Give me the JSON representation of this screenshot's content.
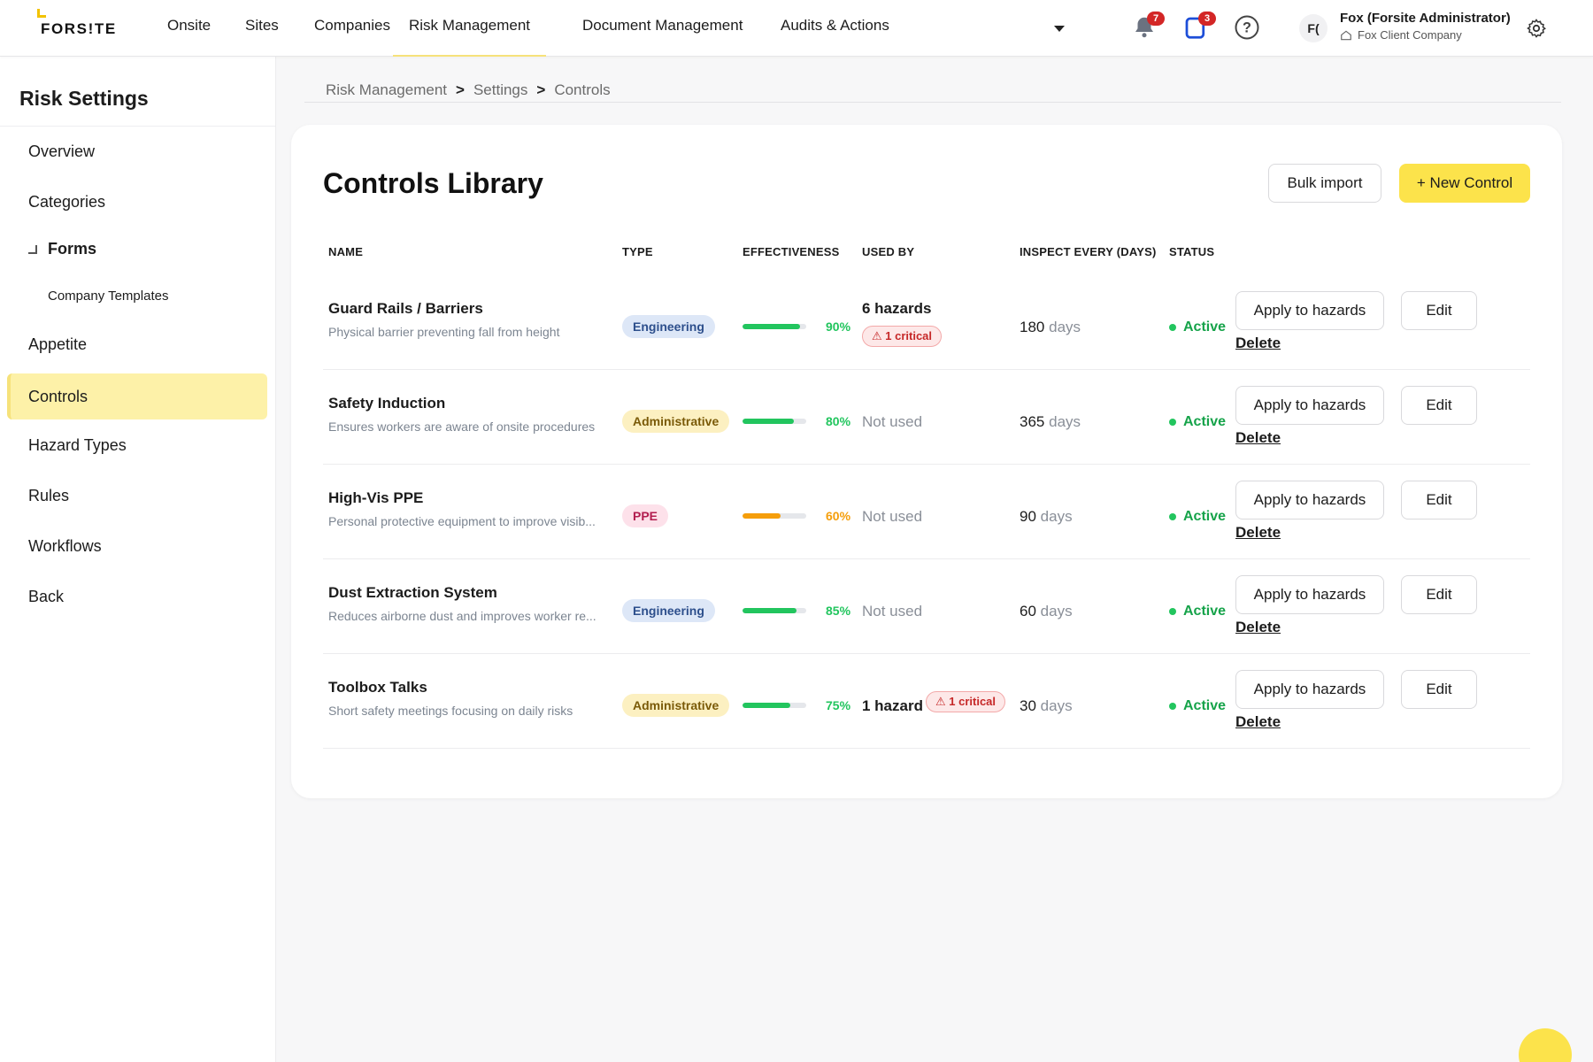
{
  "brand": {
    "name": "FORS!TE",
    "accent": "#fce34b"
  },
  "nav": {
    "items": [
      "Onsite",
      "Sites",
      "Companies",
      "Risk Management",
      "Document Management",
      "Audits & Actions"
    ],
    "active": "Risk Management",
    "notifications_count": "7",
    "tasks_count": "3",
    "user_initials": "F(",
    "user_name": "Fox (Forsite Administrator)",
    "user_company": "Fox Client Company"
  },
  "sidebar": {
    "title": "Risk Settings",
    "items": [
      "Overview",
      "Categories",
      "Forms",
      "Company Templates",
      "Appetite",
      "Controls",
      "Hazard Types",
      "Rules",
      "Workflows",
      "Back"
    ],
    "active": "Controls"
  },
  "breadcrumb": [
    "Risk Management",
    "Settings",
    "Controls"
  ],
  "card": {
    "title": "Controls Library",
    "bulk_import_label": "Bulk import",
    "new_control_label": "+ New Control",
    "columns": [
      "NAME",
      "TYPE",
      "EFFECTIVENESS",
      "USED BY",
      "INSPECT EVERY (DAYS)",
      "STATUS"
    ],
    "row_actions": {
      "apply": "Apply to hazards",
      "edit": "Edit",
      "delete": "Delete"
    },
    "days_unit": "days",
    "rows": [
      {
        "name": "Guard Rails / Barriers",
        "desc": "Physical barrier preventing fall from height",
        "type": "Engineering",
        "effectiveness": "90%",
        "used_by": "6 hazards",
        "critical": "⚠ 1 critical",
        "inspect_days": "180",
        "status": "Active"
      },
      {
        "name": "Safety Induction",
        "desc": "Ensures workers are aware of onsite procedures",
        "type": "Administrative",
        "effectiveness": "80%",
        "used_by": "Not used",
        "critical": "",
        "inspect_days": "365",
        "status": "Active"
      },
      {
        "name": "High-Vis PPE",
        "desc": "Personal protective equipment to improve visib...",
        "type": "PPE",
        "effectiveness": "60%",
        "used_by": "Not used",
        "critical": "",
        "inspect_days": "90",
        "status": "Active"
      },
      {
        "name": "Dust Extraction System",
        "desc": "Reduces airborne dust and improves worker re...",
        "type": "Engineering",
        "effectiveness": "85%",
        "used_by": "Not used",
        "critical": "",
        "inspect_days": "60",
        "status": "Active"
      },
      {
        "name": "Toolbox Talks",
        "desc": "Short safety meetings focusing on daily risks",
        "type": "Administrative",
        "effectiveness": "75%",
        "used_by": "1 hazard",
        "critical": "⚠ 1 critical",
        "inspect_days": "30",
        "status": "Active"
      }
    ]
  }
}
